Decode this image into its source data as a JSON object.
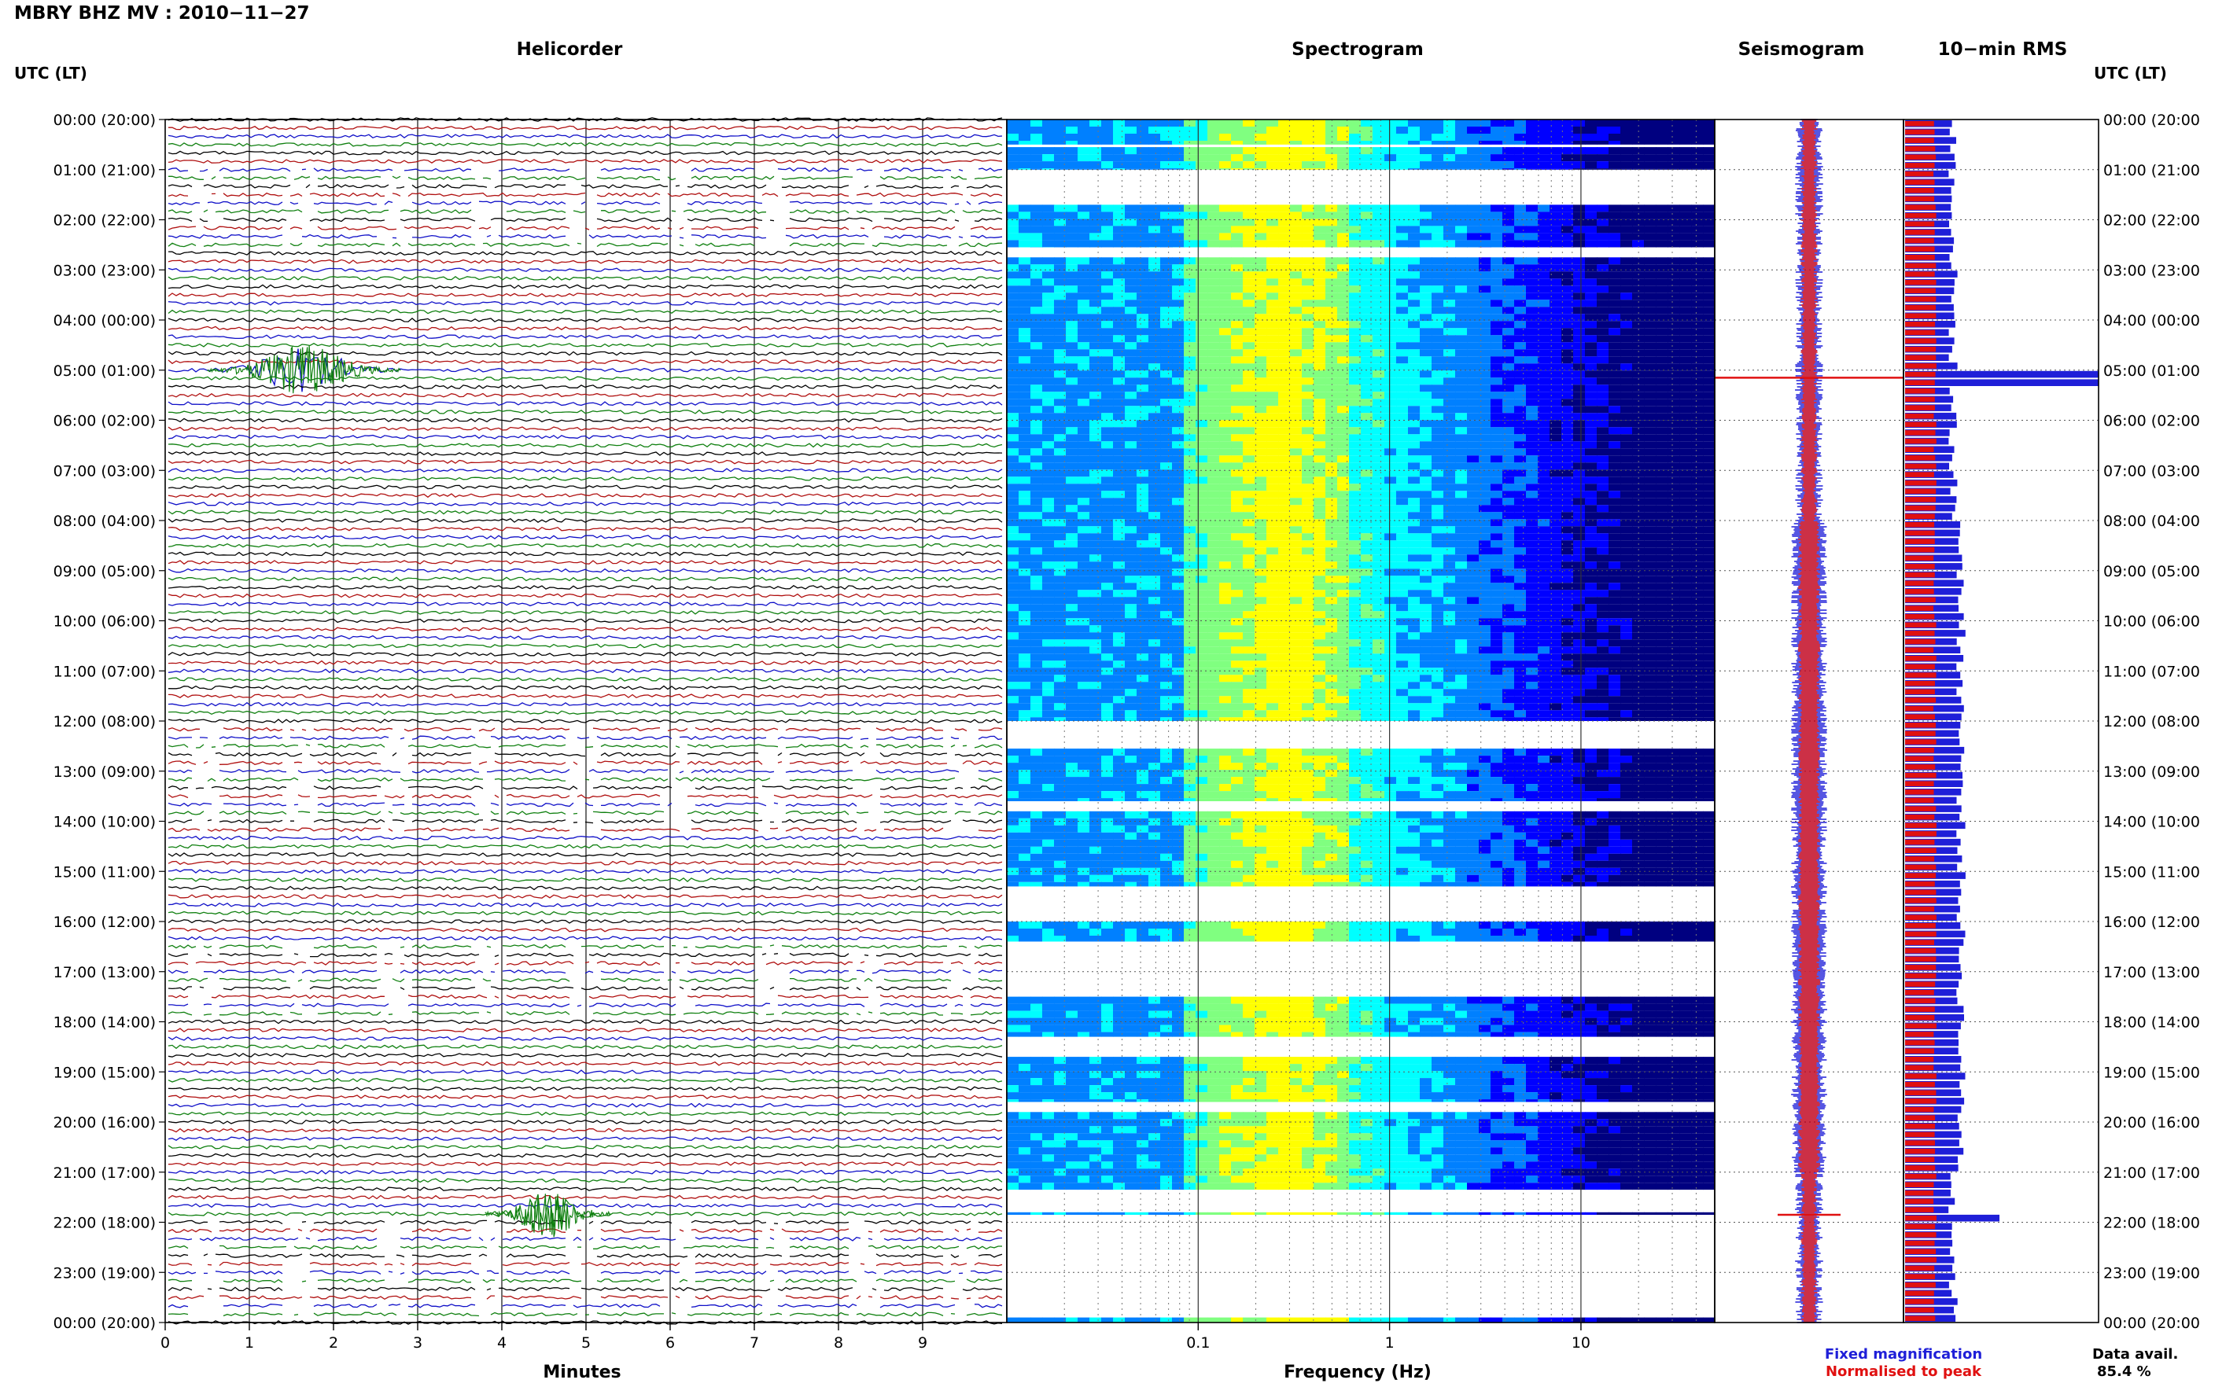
{
  "header": {
    "station_title": "MBRY BHZ MV : 2010−11−27",
    "time_axis_label": "UTC (LT)"
  },
  "panels": {
    "helicorder": "Helicorder",
    "spectrogram": "Spectrogram",
    "seismogram": "Seismogram",
    "rms": "10−min RMS"
  },
  "legend": {
    "fixed_magnification": "Fixed magnification",
    "normalised_to_peak": "Normalised to peak",
    "colors": {
      "fixed": "#1f1fd8",
      "normalised": "#e01010"
    }
  },
  "data_availability": {
    "label": "Data avail.",
    "value": "85.4 %"
  },
  "chart_data": [
    {
      "type": "line",
      "panel": "helicorder",
      "title": "Helicorder",
      "xlabel": "Minutes",
      "xlim": [
        0,
        10
      ],
      "xticks": [
        "0",
        "1",
        "2",
        "3",
        "4",
        "5",
        "6",
        "7",
        "8",
        "9"
      ],
      "time_labels_left": [
        "00:00 (20:00)",
        "01:00 (21:00)",
        "02:00 (22:00)",
        "03:00 (23:00)",
        "04:00 (00:00)",
        "05:00 (01:00)",
        "06:00 (02:00)",
        "07:00 (03:00)",
        "08:00 (04:00)",
        "09:00 (05:00)",
        "10:00 (06:00)",
        "11:00 (07:00)",
        "12:00 (08:00)",
        "13:00 (09:00)",
        "14:00 (10:00)",
        "15:00 (11:00)",
        "16:00 (12:00)",
        "17:00 (13:00)",
        "18:00 (14:00)",
        "19:00 (15:00)",
        "20:00 (16:00)",
        "21:00 (17:00)",
        "22:00 (18:00)",
        "23:00 (19:00)",
        "00:00 (20:00)"
      ],
      "trace_colors": [
        "#000000",
        "#b01010",
        "#1010c8",
        "#108010"
      ],
      "events": [
        {
          "hour": 5.0,
          "minute_start": 0.5,
          "minute_end": 2.8,
          "color": "#108010"
        },
        {
          "hour": 21.83,
          "minute_start": 3.8,
          "minute_end": 5.3,
          "color": "#108010"
        }
      ]
    },
    {
      "type": "heatmap",
      "panel": "spectrogram",
      "title": "Spectrogram",
      "xlabel": "Frequency (Hz)",
      "xscale": "log",
      "xlim": [
        0.01,
        50
      ],
      "xticks": [
        "0.1",
        "1",
        "10"
      ],
      "colormap": [
        "#000080",
        "#0000ff",
        "#0080ff",
        "#00ffff",
        "#80ff80",
        "#ffff00"
      ],
      "data_segments_hours": [
        [
          0,
          0.5
        ],
        [
          0.55,
          1.0
        ],
        [
          1.7,
          2.55
        ],
        [
          2.75,
          12.0
        ],
        [
          12.55,
          13.6
        ],
        [
          13.8,
          15.3
        ],
        [
          16.0,
          16.4
        ],
        [
          17.5,
          18.3
        ],
        [
          18.7,
          19.6
        ],
        [
          19.8,
          21.35
        ],
        [
          21.8,
          21.85
        ],
        [
          23.9,
          24.0
        ]
      ]
    },
    {
      "type": "line",
      "panel": "seismogram",
      "title": "Seismogram",
      "series": [
        {
          "name": "Fixed magnification",
          "color": "#1f1fd8"
        },
        {
          "name": "Normalised to peak",
          "color": "#e01010"
        }
      ],
      "spike_hours": [
        5.15,
        21.85
      ]
    },
    {
      "type": "bar",
      "panel": "rms",
      "title": "10−min RMS",
      "orientation": "horizontal",
      "bar_interval_minutes": 10,
      "time_labels_right": [
        "00:00 (20:00",
        "01:00 (21:00",
        "02:00 (22:00",
        "03:00 (23:00",
        "04:00 (00:00",
        "05:00 (01:00",
        "06:00 (02:00",
        "07:00 (03:00",
        "08:00 (04:00",
        "09:00 (05:00",
        "10:00 (06:00",
        "11:00 (07:00",
        "12:00 (08:00",
        "13:00 (09:00",
        "14:00 (10:00",
        "15:00 (11:00",
        "16:00 (12:00",
        "17:00 (13:00",
        "18:00 (14:00",
        "19:00 (15:00",
        "20:00 (16:00",
        "21:00 (17:00",
        "22:00 (18:00",
        "23:00 (19:00",
        "00:00 (20:00"
      ],
      "series": [
        {
          "name": "Fixed magnification",
          "color": "#1f1fd8"
        },
        {
          "name": "Normalised to peak",
          "color": "#e01010"
        }
      ],
      "peak_hours": [
        5.15,
        21.85
      ]
    }
  ]
}
